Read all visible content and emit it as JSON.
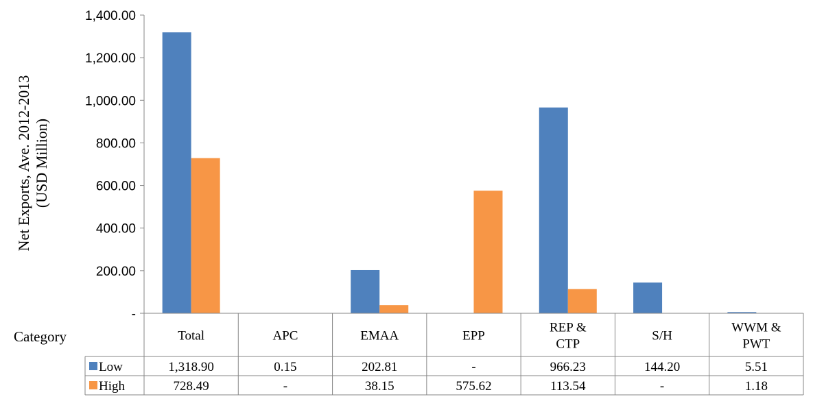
{
  "chart_data": {
    "type": "bar",
    "ylabel_lines": [
      "Net Exports, Ave. 2012-2013",
      "(USD Million)"
    ],
    "category_axis_label": "Category",
    "categories": [
      [
        "Total"
      ],
      [
        "APC"
      ],
      [
        "EMAA"
      ],
      [
        "EPP"
      ],
      [
        "REP &",
        "CTP"
      ],
      [
        "S/H"
      ],
      [
        "WWM &",
        "PWT"
      ]
    ],
    "ylim": [
      0,
      1400
    ],
    "yticks": [
      0,
      200,
      400,
      600,
      800,
      1000,
      1200,
      1400
    ],
    "ytick_labels": [
      "-",
      "200.00",
      "400.00",
      "600.00",
      "800.00",
      "1,000.00",
      "1,200.00",
      "1,400.00"
    ],
    "grid": false,
    "legend": "data-table",
    "series": [
      {
        "name": "Low",
        "color": "#4f81bd",
        "values": [
          1318.9,
          0.15,
          202.81,
          0,
          966.23,
          144.2,
          5.51
        ],
        "table_labels": [
          "1,318.90",
          "0.15",
          "202.81",
          "-",
          "966.23",
          "144.20",
          "5.51"
        ]
      },
      {
        "name": "High",
        "color": "#f79646",
        "values": [
          728.49,
          0,
          38.15,
          575.62,
          113.54,
          0,
          1.18
        ],
        "table_labels": [
          "728.49",
          "-",
          "38.15",
          "575.62",
          "113.54",
          "-",
          "1.18"
        ]
      }
    ]
  }
}
